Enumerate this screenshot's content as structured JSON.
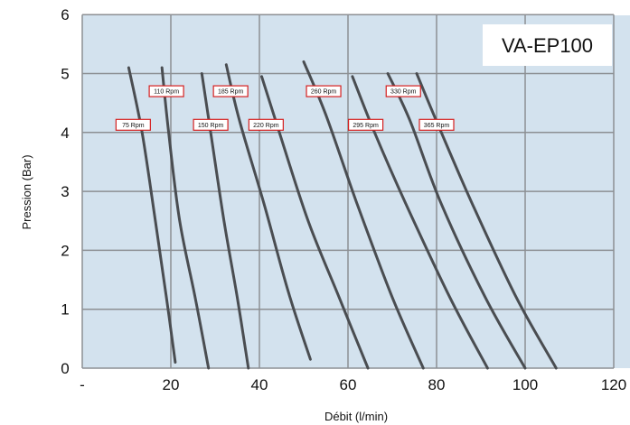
{
  "chart_data": {
    "type": "line",
    "title": "VA-EP100",
    "xlabel": "Débit (l/min)",
    "ylabel": "Pression (Bar)",
    "xlim": [
      0,
      120
    ],
    "ylim": [
      0,
      6
    ],
    "grid": true,
    "x_ticks": [
      {
        "value": 0,
        "label": "-"
      },
      {
        "value": 20,
        "label": "20"
      },
      {
        "value": 40,
        "label": "40"
      },
      {
        "value": 60,
        "label": "60"
      },
      {
        "value": 80,
        "label": "80"
      },
      {
        "value": 100,
        "label": "100"
      },
      {
        "value": 120,
        "label": "120"
      }
    ],
    "y_ticks": [
      {
        "value": 0,
        "label": "0"
      },
      {
        "value": 1,
        "label": "1"
      },
      {
        "value": 2,
        "label": "2"
      },
      {
        "value": 3,
        "label": "3"
      },
      {
        "value": 4,
        "label": "4"
      },
      {
        "value": 5,
        "label": "5"
      },
      {
        "value": 6,
        "label": "6"
      }
    ],
    "colors": {
      "plot_background": "#d3e2ee",
      "grid": "#8c8f93",
      "curve": "#4a4d51",
      "label_border": "#d42020"
    },
    "series": [
      {
        "label": "75 Rpm",
        "label_at": [
          11.5,
          4.13
        ],
        "x": [
          10.5,
          13.5,
          16.5,
          19.0,
          21.0
        ],
        "y": [
          5.1,
          4.0,
          2.5,
          1.2,
          0.1
        ]
      },
      {
        "label": "110 Rpm",
        "label_at": [
          19.0,
          4.7
        ],
        "x": [
          18.0,
          19.5,
          22.0,
          25.5,
          28.5
        ],
        "y": [
          5.1,
          4.0,
          2.5,
          1.2,
          0.0
        ]
      },
      {
        "label": "150 Rpm",
        "label_at": [
          29.0,
          4.13
        ],
        "x": [
          27.0,
          29.0,
          32.0,
          35.0,
          37.5
        ],
        "y": [
          5.0,
          4.0,
          2.5,
          1.2,
          0.0
        ]
      },
      {
        "label": "185 Rpm",
        "label_at": [
          33.5,
          4.7
        ],
        "x": [
          32.5,
          35.5,
          41.0,
          46.5,
          51.5
        ],
        "y": [
          5.15,
          4.2,
          2.8,
          1.3,
          0.15
        ]
      },
      {
        "label": "220 Rpm",
        "label_at": [
          41.5,
          4.13
        ],
        "x": [
          40.5,
          44.5,
          51.0,
          58.0,
          64.5
        ],
        "y": [
          4.95,
          4.0,
          2.5,
          1.2,
          0.0
        ]
      },
      {
        "label": "260 Rpm",
        "label_at": [
          54.5,
          4.7
        ],
        "x": [
          50.0,
          55.0,
          62.0,
          70.0,
          77.0
        ],
        "y": [
          5.2,
          4.3,
          2.8,
          1.2,
          0.0
        ]
      },
      {
        "label": "295 Rpm",
        "label_at": [
          64.0,
          4.13
        ],
        "x": [
          61.0,
          66.0,
          73.0,
          83.0,
          91.5
        ],
        "y": [
          4.95,
          4.0,
          2.8,
          1.2,
          0.0
        ]
      },
      {
        "label": "330 Rpm",
        "label_at": [
          72.5,
          4.7
        ],
        "x": [
          69.0,
          74.0,
          81.0,
          91.0,
          100.0
        ],
        "y": [
          5.0,
          4.2,
          2.8,
          1.2,
          0.0
        ]
      },
      {
        "label": "365 Rpm",
        "label_at": [
          80.0,
          4.13
        ],
        "x": [
          75.5,
          80.5,
          88.0,
          98.0,
          107.0
        ],
        "y": [
          5.0,
          4.1,
          2.8,
          1.2,
          0.0
        ]
      }
    ]
  }
}
